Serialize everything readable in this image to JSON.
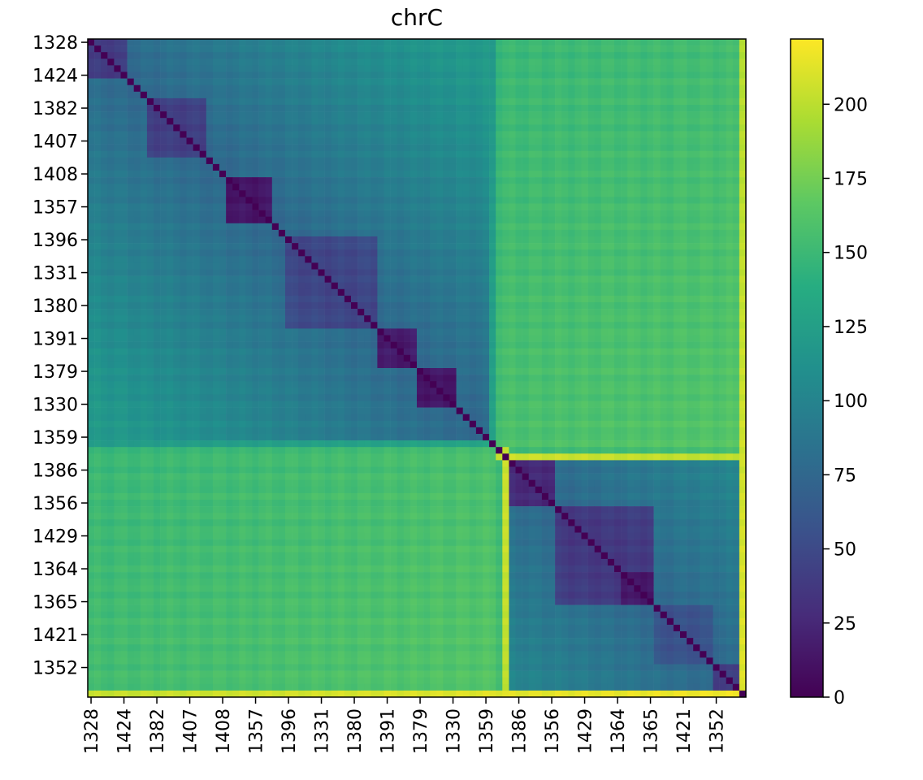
{
  "chart_data": {
    "type": "heatmap",
    "title": "chrC",
    "xlabel": "",
    "ylabel": "",
    "colormap": "viridis",
    "n": 100,
    "tick_step": 5,
    "tick_labels": [
      "1328",
      "1424",
      "1382",
      "1407",
      "1408",
      "1357",
      "1396",
      "1331",
      "1380",
      "1391",
      "1379",
      "1330",
      "1359",
      "1386",
      "1356",
      "1429",
      "1364",
      "1365",
      "1421",
      "1352"
    ],
    "colorbar": {
      "vmin": 0,
      "vmax": 222,
      "ticks": [
        0,
        25,
        50,
        75,
        100,
        125,
        150,
        175,
        200
      ],
      "tick_labels": [
        "0",
        "25",
        "50",
        "75",
        "100",
        "125",
        "150",
        "175",
        "200"
      ]
    },
    "hierarchy": {
      "clusters": [
        {
          "start": 0,
          "end": 61,
          "level": 1,
          "children": [
            {
              "start": 0,
              "end": 30,
              "level": 2,
              "children": [
                {
                  "start": 0,
                  "end": 6,
                  "level": 3,
                  "value": 38
                },
                {
                  "start": 6,
                  "end": 21,
                  "level": 3,
                  "children": [
                    {
                      "start": 9,
                      "end": 18,
                      "level": 4,
                      "value": 40
                    },
                    {
                      "start": 21,
                      "end": 21,
                      "level": 4,
                      "value": 0
                    }
                  ]
                },
                {
                  "start": 21,
                  "end": 28,
                  "level": 3,
                  "value": 12
                }
              ]
            },
            {
              "start": 30,
              "end": 61,
              "level": 2,
              "children": [
                {
                  "start": 30,
                  "end": 44,
                  "level": 3,
                  "value": 45
                },
                {
                  "start": 44,
                  "end": 59,
                  "level": 3,
                  "children": [
                    {
                      "start": 44,
                      "end": 50,
                      "level": 4,
                      "value": 15
                    },
                    {
                      "start": 50,
                      "end": 56,
                      "level": 4,
                      "value": 12
                    }
                  ]
                }
              ]
            }
          ]
        },
        {
          "start": 63,
          "end": 100,
          "level": 1,
          "children": [
            {
              "start": 63,
              "end": 71,
              "level": 2,
              "value": 25
            },
            {
              "start": 71,
              "end": 86,
              "level": 2,
              "children": [
                {
                  "start": 71,
                  "end": 86,
                  "level": 3,
                  "value": 35
                },
                {
                  "start": 81,
                  "end": 86,
                  "level": 3,
                  "value": 14
                }
              ]
            },
            {
              "start": 86,
              "end": 95,
              "level": 2,
              "value": 55
            },
            {
              "start": 95,
              "end": 100,
              "level": 2,
              "value": 40
            }
          ]
        }
      ],
      "between_blocks": {
        "top_left_pairs": 120,
        "top_vs_bottom": 150,
        "bottom_left_pairs": 145
      },
      "outlier_rows": [
        {
          "index": 63,
          "value": 205,
          "note": "bright row/column near 1359"
        },
        {
          "index": 99,
          "value": 215,
          "note": "bright last row/column"
        }
      ]
    }
  }
}
